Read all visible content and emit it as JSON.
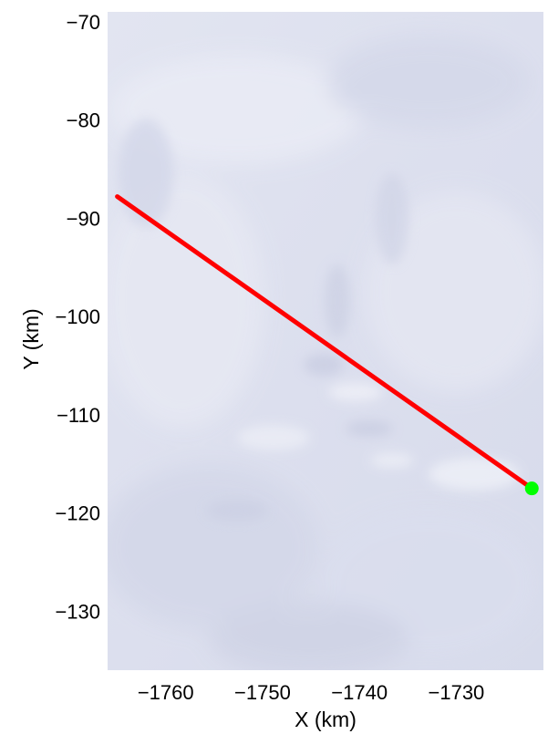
{
  "chart_data": {
    "type": "line",
    "title": "",
    "xlabel": "X (km)",
    "ylabel": "Y (km)",
    "xlim": [
      -1766,
      -1721
    ],
    "ylim": [
      -136,
      -69
    ],
    "xticks": [
      -1760,
      -1750,
      -1740,
      -1730
    ],
    "xtick_labels": [
      "−1760",
      "−1750",
      "−1740",
      "−1730"
    ],
    "yticks": [
      -70,
      -80,
      -90,
      -100,
      -110,
      -120,
      -130
    ],
    "ytick_labels": [
      "−70",
      "−80",
      "−90",
      "−100",
      "−110",
      "−120",
      "−130"
    ],
    "grid": false,
    "background": "satellite imagery of ice sheet surface",
    "series": [
      {
        "type": "line",
        "x": [
          -1765.0,
          -1722.2
        ],
        "y": [
          -87.8,
          -117.5
        ],
        "color": "#ff0000"
      },
      {
        "type": "point",
        "x": [
          -1722.2
        ],
        "y": [
          -117.5
        ],
        "color": "#00ff00"
      }
    ]
  }
}
